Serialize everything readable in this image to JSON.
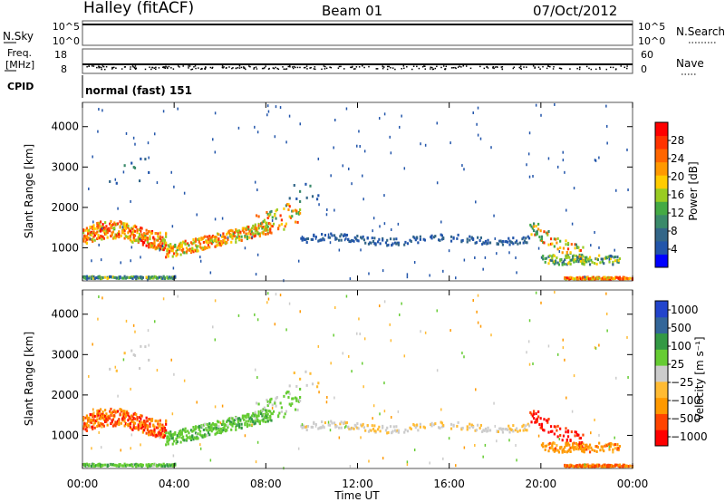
{
  "header": {
    "station": "Halley (fitACF)",
    "beam": "Beam 01",
    "date": "07/Oct/2012"
  },
  "top_panels": {
    "nsky_label": "N.Sky",
    "nsky_ticks": [
      "10^5",
      "10^0"
    ],
    "nsearch_label": "N.Search",
    "nsearch_ticks": [
      "10^5",
      "10^0"
    ],
    "freq_label_line1": "Freq.",
    "freq_label_line2": "[MHz]",
    "freq_ticks": [
      "18",
      "8"
    ],
    "nave_label": "Nave",
    "nave_ticks": [
      "60",
      "0"
    ],
    "cpid_label": "CPID",
    "cpid_text": "normal (fast) 151"
  },
  "colors": {
    "power_scale": [
      "#0000ff",
      "#2255aa",
      "#336688",
      "#3a8a6a",
      "#44aa44",
      "#99cc22",
      "#ffcc00",
      "#ff9900",
      "#ff6600",
      "#ff3300",
      "#ff0000"
    ],
    "velocity_scale": [
      "#ff0000",
      "#ff4400",
      "#ff9900",
      "#ffbb33",
      "#cccccc",
      "#66cc33",
      "#339944",
      "#336699",
      "#2244cc"
    ]
  },
  "chart_data": [
    {
      "type": "heatmap",
      "ylabel": "Slant Range [km]",
      "xlabel": "Time UT",
      "x_ticks": [
        "00:00",
        "04:00",
        "08:00",
        "12:00",
        "16:00",
        "20:00",
        "00:00"
      ],
      "y_ticks": [
        "1000",
        "2000",
        "3000",
        "4000"
      ],
      "xlim_hours": [
        0,
        24
      ],
      "ylim_km": [
        180,
        4600
      ],
      "colorbar_label": "Power [dB]",
      "colorbar_ticks": [
        "4",
        "8",
        "12",
        "16",
        "20",
        "24",
        "28"
      ],
      "colorbar_range": [
        0,
        30
      ]
    },
    {
      "type": "heatmap",
      "ylabel": "Slant Range [km]",
      "xlabel": "Time UT",
      "x_ticks": [
        "00:00",
        "04:00",
        "08:00",
        "12:00",
        "16:00",
        "20:00",
        "00:00"
      ],
      "y_ticks": [
        "1000",
        "2000",
        "3000",
        "4000"
      ],
      "xlim_hours": [
        0,
        24
      ],
      "ylim_km": [
        180,
        4600
      ],
      "colorbar_label": "Velocity [m s⁻¹]",
      "colorbar_ticks": [
        "1000",
        "500",
        "100",
        "25",
        "−25",
        "−100",
        "−500",
        "−1000"
      ]
    }
  ]
}
